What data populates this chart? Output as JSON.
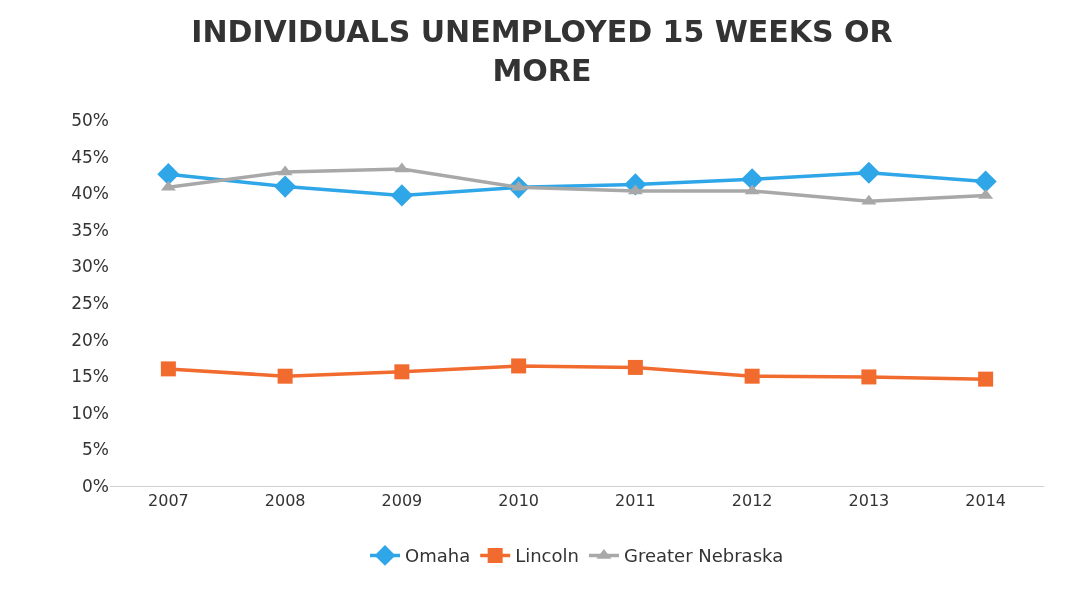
{
  "chart_data": {
    "type": "line",
    "title": "INDIVIDUALS UNEMPLOYED 15 WEEKS OR MORE",
    "categories": [
      "2007",
      "2008",
      "2009",
      "2010",
      "2011",
      "2012",
      "2013",
      "2014"
    ],
    "series": [
      {
        "name": "Omaha",
        "color": "#2ea6e8",
        "marker": "diamond",
        "values": [
          42.6,
          40.9,
          39.7,
          40.8,
          41.2,
          41.9,
          42.8,
          41.6
        ]
      },
      {
        "name": "Lincoln",
        "color": "#f26b2e",
        "marker": "square",
        "values": [
          16.0,
          15.0,
          15.6,
          16.4,
          16.2,
          15.0,
          14.9,
          14.6
        ]
      },
      {
        "name": "Greater Nebraska",
        "color": "#a8a8a8",
        "marker": "triangle",
        "values": [
          40.8,
          42.9,
          43.3,
          40.8,
          40.3,
          40.3,
          38.9,
          39.7
        ]
      }
    ],
    "ylim": [
      0,
      50
    ],
    "yticks": [
      {
        "value": 0,
        "label": "0%"
      },
      {
        "value": 5,
        "label": "5%"
      },
      {
        "value": 10,
        "label": "10%"
      },
      {
        "value": 15,
        "label": "15%"
      },
      {
        "value": 20,
        "label": "20%"
      },
      {
        "value": 25,
        "label": "25%"
      },
      {
        "value": 30,
        "label": "30%"
      },
      {
        "value": 35,
        "label": "35%"
      },
      {
        "value": 40,
        "label": "40%"
      },
      {
        "value": 45,
        "label": "45%"
      },
      {
        "value": 50,
        "label": "50%"
      }
    ],
    "legend": "bottom",
    "line_style": "solid"
  }
}
